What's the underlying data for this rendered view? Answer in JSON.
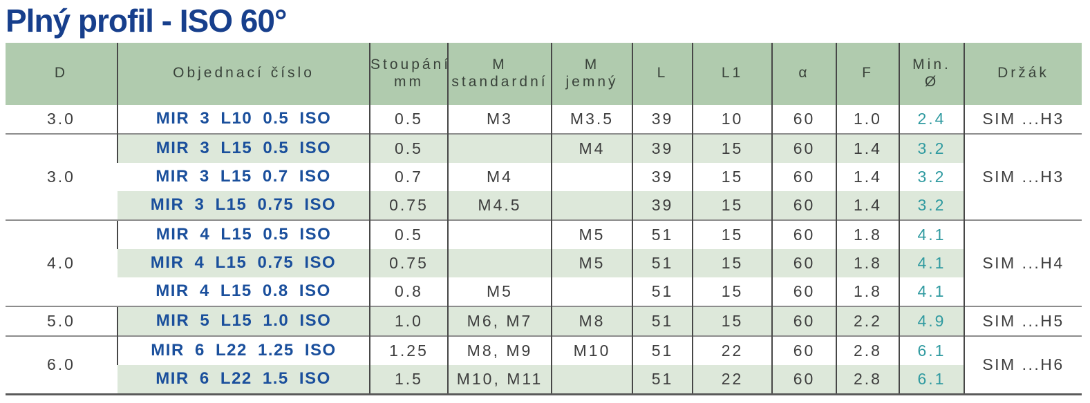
{
  "page": {
    "title": "Plný profil - ISO 60°"
  },
  "colors": {
    "title_blue": "#173f8c",
    "order_number_blue": "#1a4f9c",
    "header_background_green": "#b0cbae",
    "stripe_background_green": "#dde8da",
    "row_background": "#ffffff",
    "min_diameter_teal": "#2f9aa0",
    "body_text": "#3d3d3d",
    "grid_line": "#474747",
    "group_separator_line": "#8c8c8c"
  },
  "table": {
    "columns": [
      {
        "key": "d",
        "lines": [
          "D"
        ]
      },
      {
        "key": "order",
        "lines": [
          "Objednací číslo"
        ]
      },
      {
        "key": "pitch",
        "lines": [
          "Stoupání",
          "mm"
        ]
      },
      {
        "key": "m_std",
        "lines": [
          "M",
          "standardní"
        ]
      },
      {
        "key": "m_fine",
        "lines": [
          "M",
          "jemný"
        ]
      },
      {
        "key": "l",
        "lines": [
          "L"
        ]
      },
      {
        "key": "l1",
        "lines": [
          "L1"
        ]
      },
      {
        "key": "alpha",
        "lines": [
          "α"
        ]
      },
      {
        "key": "f",
        "lines": [
          "F"
        ]
      },
      {
        "key": "min_dia",
        "lines": [
          "Min.",
          "Ø"
        ]
      },
      {
        "key": "holder",
        "lines": [
          "Držák"
        ]
      }
    ],
    "groups": [
      {
        "d": "3.0",
        "holder": "SIM ...H3",
        "rows": [
          {
            "order": "MIR 3 L10 0.5 ISO",
            "pitch": "0.5",
            "m_std": "M3",
            "m_fine": "M3.5",
            "l": "39",
            "l1": "10",
            "alpha": "60",
            "f": "1.0",
            "min_dia": "2.4",
            "striped": false
          }
        ]
      },
      {
        "d": "3.0",
        "holder": "SIM ...H3",
        "rows": [
          {
            "order": "MIR 3 L15 0.5 ISO",
            "pitch": "0.5",
            "m_std": "",
            "m_fine": "M4",
            "l": "39",
            "l1": "15",
            "alpha": "60",
            "f": "1.4",
            "min_dia": "3.2",
            "striped": true
          },
          {
            "order": "MIR 3 L15 0.7 ISO",
            "pitch": "0.7",
            "m_std": "M4",
            "m_fine": "",
            "l": "39",
            "l1": "15",
            "alpha": "60",
            "f": "1.4",
            "min_dia": "3.2",
            "striped": false
          },
          {
            "order": "MIR 3 L15 0.75 ISO",
            "pitch": "0.75",
            "m_std": "M4.5",
            "m_fine": "",
            "l": "39",
            "l1": "15",
            "alpha": "60",
            "f": "1.4",
            "min_dia": "3.2",
            "striped": true
          }
        ]
      },
      {
        "d": "4.0",
        "holder": "SIM ...H4",
        "rows": [
          {
            "order": "MIR 4 L15 0.5 ISO",
            "pitch": "0.5",
            "m_std": "",
            "m_fine": "M5",
            "l": "51",
            "l1": "15",
            "alpha": "60",
            "f": "1.8",
            "min_dia": "4.1",
            "striped": false
          },
          {
            "order": "MIR 4 L15 0.75 ISO",
            "pitch": "0.75",
            "m_std": "",
            "m_fine": "M5",
            "l": "51",
            "l1": "15",
            "alpha": "60",
            "f": "1.8",
            "min_dia": "4.1",
            "striped": true
          },
          {
            "order": "MIR 4 L15 0.8 ISO",
            "pitch": "0.8",
            "m_std": "M5",
            "m_fine": "",
            "l": "51",
            "l1": "15",
            "alpha": "60",
            "f": "1.8",
            "min_dia": "4.1",
            "striped": false
          }
        ]
      },
      {
        "d": "5.0",
        "holder": "SIM ...H5",
        "rows": [
          {
            "order": "MIR 5 L15 1.0 ISO",
            "pitch": "1.0",
            "m_std": "M6, M7",
            "m_fine": "M8",
            "l": "51",
            "l1": "15",
            "alpha": "60",
            "f": "2.2",
            "min_dia": "4.9",
            "striped": true
          }
        ]
      },
      {
        "d": "6.0",
        "holder": "SIM ...H6",
        "rows": [
          {
            "order": "MIR 6 L22 1.25 ISO",
            "pitch": "1.25",
            "m_std": "M8, M9",
            "m_fine": "M10",
            "l": "51",
            "l1": "22",
            "alpha": "60",
            "f": "2.8",
            "min_dia": "6.1",
            "striped": false
          },
          {
            "order": "MIR 6 L22 1.5 ISO",
            "pitch": "1.5",
            "m_std": "M10, M11",
            "m_fine": "",
            "l": "51",
            "l1": "22",
            "alpha": "60",
            "f": "2.8",
            "min_dia": "6.1",
            "striped": true
          }
        ]
      }
    ]
  }
}
